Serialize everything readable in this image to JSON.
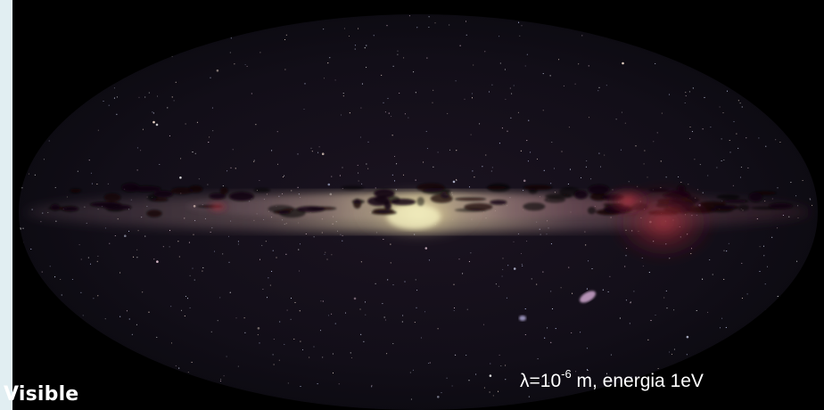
{
  "image": {
    "subject": "all-sky-milky-way-visible-light",
    "projection_shape": "ellipse"
  },
  "labels": {
    "band_name": "Visible",
    "wavelength_prefix": "λ=10",
    "wavelength_exponent": "-6",
    "wavelength_suffix": " m, energia 1eV"
  },
  "colors": {
    "background": "#000000",
    "page": "#eaf3f6",
    "text": "#ffffff",
    "galactic_core": "#f3efb8",
    "nebula_red": "#b0303c",
    "dust_lane": "#0a0608"
  },
  "icons": [
    "star-field",
    "galactic-band",
    "magellanic-cloud-large",
    "magellanic-cloud-small"
  ]
}
